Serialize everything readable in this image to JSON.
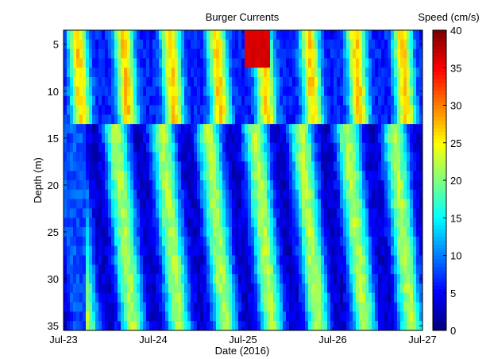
{
  "chart_data": {
    "type": "heatmap",
    "title": "Burger Currents",
    "xlabel": "Date (2016)",
    "ylabel": "Depth (m)",
    "x_ticks": [
      "Jul-23",
      "Jul-24",
      "Jul-25",
      "Jul-26",
      "Jul-27"
    ],
    "x_range": [
      "2016-07-23",
      "2016-07-27"
    ],
    "y_ticks": [
      5,
      10,
      15,
      20,
      25,
      30,
      35
    ],
    "y_range": [
      3.5,
      35.5
    ],
    "y_reversed": true,
    "colorbar": {
      "label": "Speed (cm/s)",
      "ticks": [
        0,
        5,
        10,
        15,
        20,
        25,
        30,
        35,
        40
      ],
      "range": [
        0,
        40
      ],
      "colormap": "jet"
    },
    "z_units": "cm/s",
    "depth_bins_m": [
      4,
      5,
      6,
      7,
      8,
      9,
      10,
      11,
      12,
      13,
      14,
      15,
      16,
      17,
      18,
      19,
      20,
      21,
      22,
      23,
      24,
      25,
      26,
      27,
      28,
      29,
      30,
      31,
      32,
      33,
      34,
      35
    ],
    "time_bins": [
      "2016-07-23 00:00",
      "2016-07-23 03:00",
      "2016-07-23 06:00",
      "2016-07-23 09:00",
      "2016-07-23 12:00",
      "2016-07-23 15:00",
      "2016-07-23 18:00",
      "2016-07-23 21:00",
      "2016-07-24 00:00",
      "2016-07-24 03:00",
      "2016-07-24 06:00",
      "2016-07-24 09:00",
      "2016-07-24 12:00",
      "2016-07-24 15:00",
      "2016-07-24 18:00",
      "2016-07-24 21:00",
      "2016-07-25 00:00",
      "2016-07-25 03:00",
      "2016-07-25 06:00",
      "2016-07-25 09:00",
      "2016-07-25 12:00",
      "2016-07-25 15:00",
      "2016-07-25 18:00",
      "2016-07-25 21:00",
      "2016-07-26 00:00",
      "2016-07-26 03:00",
      "2016-07-26 06:00",
      "2016-07-26 09:00",
      "2016-07-26 12:00",
      "2016-07-26 15:00",
      "2016-07-26 18:00",
      "2016-07-26 21:00"
    ],
    "speed_surface": {
      "upper_layer_depth_m": [
        4,
        13
      ],
      "lower_layer_depth_m": [
        14,
        35
      ],
      "upper_layer_band_speed_cm_s": 27,
      "upper_layer_peak_speed_cm_s": 38,
      "upper_layer_trough_speed_cm_s": 6,
      "lower_layer_band_speed_cm_s": 22,
      "lower_layer_trough_speed_cm_s": 3,
      "band_period_hours": 12.4
    }
  }
}
